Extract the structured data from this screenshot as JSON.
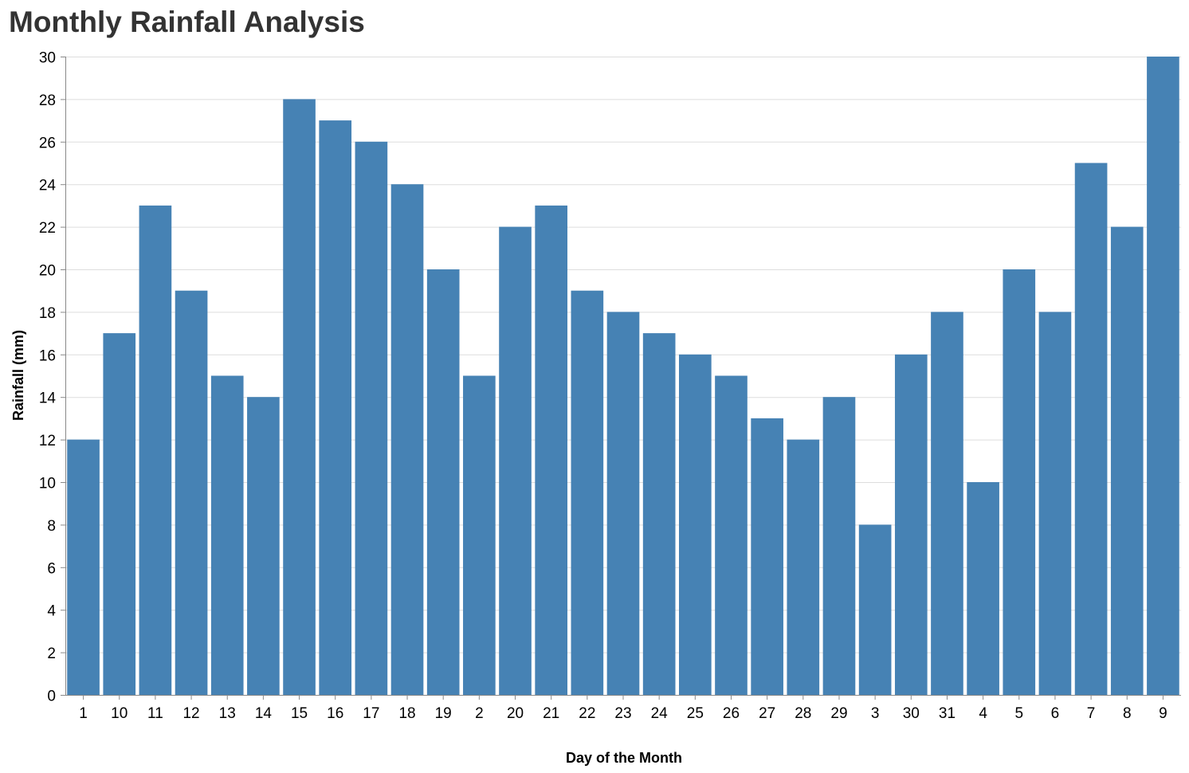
{
  "chart_data": {
    "type": "bar",
    "title": "Monthly Rainfall Analysis",
    "xlabel": "Day of the Month",
    "ylabel": "Rainfall (mm)",
    "categories": [
      "1",
      "10",
      "11",
      "12",
      "13",
      "14",
      "15",
      "16",
      "17",
      "18",
      "19",
      "2",
      "20",
      "21",
      "22",
      "23",
      "24",
      "25",
      "26",
      "27",
      "28",
      "29",
      "3",
      "30",
      "31",
      "4",
      "5",
      "6",
      "7",
      "8",
      "9"
    ],
    "values": [
      12,
      17,
      23,
      19,
      15,
      14,
      28,
      27,
      26,
      24,
      20,
      15,
      22,
      23,
      19,
      18,
      17,
      16,
      15,
      13,
      12,
      14,
      8,
      16,
      18,
      10,
      20,
      18,
      25,
      22,
      30
    ],
    "ylim": [
      0,
      30
    ],
    "yticks": [
      0,
      2,
      4,
      6,
      8,
      10,
      12,
      14,
      16,
      18,
      20,
      22,
      24,
      26,
      28,
      30
    ],
    "grid": true,
    "bar_color": "#4682b4",
    "grid_color": "#dddddd",
    "axis_color": "#888888"
  }
}
